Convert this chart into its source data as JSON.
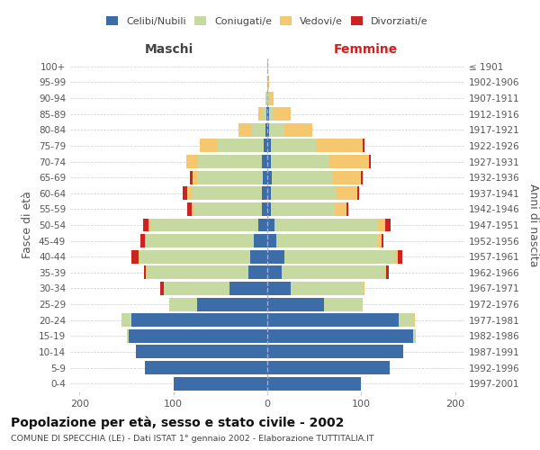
{
  "age_groups": [
    "0-4",
    "5-9",
    "10-14",
    "15-19",
    "20-24",
    "25-29",
    "30-34",
    "35-39",
    "40-44",
    "45-49",
    "50-54",
    "55-59",
    "60-64",
    "65-69",
    "70-74",
    "75-79",
    "80-84",
    "85-89",
    "90-94",
    "95-99",
    "100+"
  ],
  "birth_years": [
    "1997-2001",
    "1992-1996",
    "1987-1991",
    "1982-1986",
    "1977-1981",
    "1972-1976",
    "1967-1971",
    "1962-1966",
    "1957-1961",
    "1952-1956",
    "1947-1951",
    "1942-1946",
    "1937-1941",
    "1932-1936",
    "1927-1931",
    "1922-1926",
    "1917-1921",
    "1912-1916",
    "1907-1911",
    "1902-1906",
    "≤ 1901"
  ],
  "male": {
    "celibi": [
      100,
      130,
      140,
      148,
      145,
      75,
      40,
      20,
      18,
      14,
      10,
      6,
      6,
      5,
      6,
      4,
      2,
      1,
      0,
      0,
      0
    ],
    "coniugati": [
      0,
      0,
      0,
      2,
      10,
      30,
      70,
      108,
      118,
      115,
      115,
      72,
      75,
      70,
      68,
      50,
      14,
      4,
      1,
      0,
      0
    ],
    "vedovi": [
      0,
      0,
      0,
      0,
      0,
      0,
      0,
      1,
      1,
      1,
      2,
      3,
      4,
      5,
      12,
      18,
      15,
      5,
      1,
      0,
      0
    ],
    "divorziati": [
      0,
      0,
      0,
      0,
      0,
      0,
      4,
      2,
      8,
      5,
      5,
      4,
      5,
      2,
      0,
      0,
      0,
      0,
      0,
      0,
      0
    ]
  },
  "female": {
    "nubili": [
      100,
      130,
      145,
      155,
      140,
      60,
      25,
      15,
      18,
      10,
      8,
      4,
      4,
      5,
      4,
      4,
      2,
      2,
      0,
      0,
      0
    ],
    "coniugate": [
      0,
      0,
      0,
      3,
      15,
      42,
      78,
      110,
      118,
      108,
      110,
      68,
      70,
      65,
      62,
      48,
      16,
      5,
      2,
      0,
      0
    ],
    "vedove": [
      0,
      0,
      0,
      0,
      2,
      0,
      1,
      2,
      3,
      4,
      8,
      12,
      22,
      30,
      42,
      50,
      30,
      18,
      5,
      2,
      1
    ],
    "divorziate": [
      0,
      0,
      0,
      0,
      0,
      0,
      0,
      2,
      5,
      2,
      5,
      2,
      2,
      2,
      2,
      2,
      0,
      0,
      0,
      0,
      0
    ]
  },
  "colors": {
    "celibi_nubili": "#3d6da8",
    "coniugati": "#c5d9a0",
    "vedovi": "#f5c870",
    "divorziati": "#cc2222"
  },
  "xlim": 210,
  "title": "Popolazione per età, sesso e stato civile - 2002",
  "subtitle": "COMUNE DI SPECCHIA (LE) - Dati ISTAT 1° gennaio 2002 - Elaborazione TUTTITALIA.IT",
  "ylabel_left": "Fasce di età",
  "ylabel_right": "Anni di nascita",
  "xlabel_male": "Maschi",
  "xlabel_female": "Femmine"
}
